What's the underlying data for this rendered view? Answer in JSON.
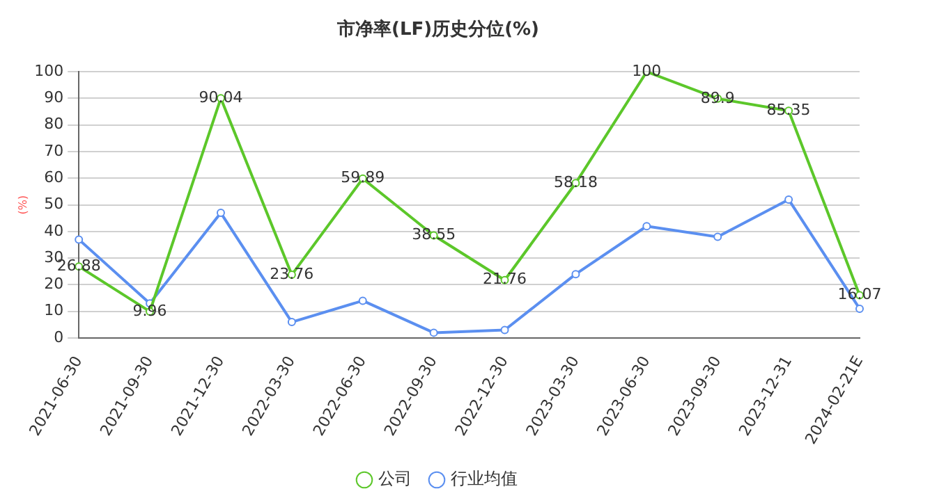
{
  "chart_data": {
    "type": "line",
    "title": "市净率(LF)历史分位(%)",
    "ylabel": "(%)",
    "categories": [
      "2021-06-30",
      "2021-09-30",
      "2021-12-30",
      "2022-03-30",
      "2022-06-30",
      "2022-09-30",
      "2022-12-30",
      "2023-03-30",
      "2023-06-30",
      "2023-09-30",
      "2023-12-31",
      "2024-02-21E"
    ],
    "series": [
      {
        "name": "公司",
        "color": "#5cc72a",
        "values": [
          26.88,
          9.96,
          90.04,
          23.76,
          59.89,
          38.55,
          21.76,
          58.18,
          100,
          89.9,
          85.35,
          16.07
        ],
        "data_labels": true
      },
      {
        "name": "行业均值",
        "color": "#5b8ff0",
        "values": [
          37,
          13,
          47,
          6,
          14,
          2,
          3,
          24,
          42,
          38,
          52,
          11
        ]
      }
    ],
    "ylim": [
      0,
      100
    ],
    "yticks": [
      0,
      10,
      20,
      30,
      40,
      50,
      60,
      70,
      80,
      90,
      100
    ],
    "grid": "y",
    "legend": "bottom",
    "marker": "circle",
    "line_style": "solid"
  }
}
